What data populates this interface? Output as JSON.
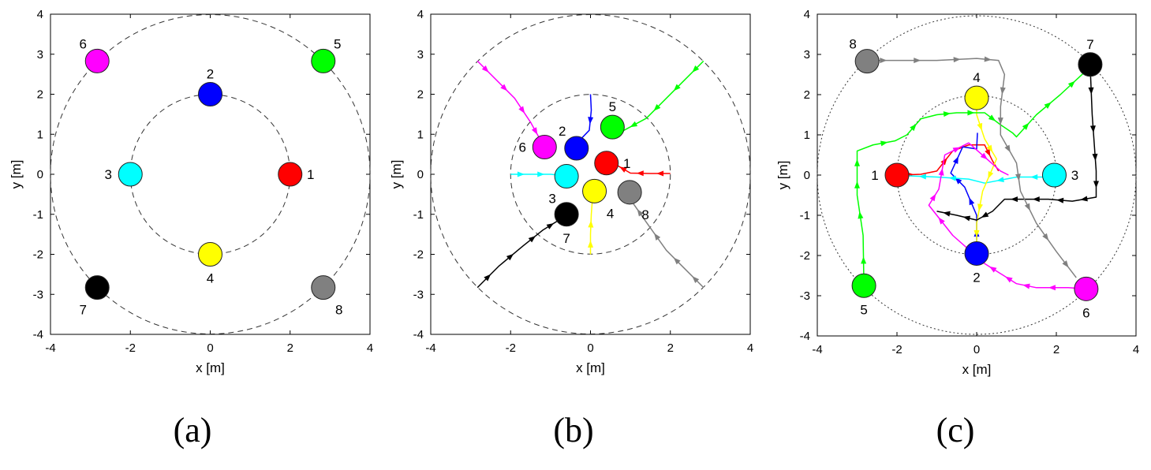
{
  "colors": {
    "1": "#ff0000",
    "2": "#0000ff",
    "3": "#00ffff",
    "4": "#ffff00",
    "5": "#00ff00",
    "6": "#ff00ff",
    "7": "#000000",
    "8": "#808080"
  },
  "chart_data": [
    {
      "type": "scatter",
      "caption": "(a)",
      "xlabel": "x [m]",
      "ylabel": "y [m]",
      "xlim": [
        -4,
        4
      ],
      "ylim": [
        -4,
        4
      ],
      "xticks": [
        -4,
        -2,
        0,
        2,
        4
      ],
      "yticks": [
        -4,
        -3,
        -2,
        -1,
        0,
        1,
        2,
        3,
        4
      ],
      "grid": false,
      "circles": [
        {
          "r": 2,
          "style": "dashed"
        },
        {
          "r": 4,
          "style": "dashed"
        }
      ],
      "robots": [
        {
          "id": "1",
          "x": 2.0,
          "y": 0.0,
          "label_pos": "right"
        },
        {
          "id": "2",
          "x": 0.0,
          "y": 2.0,
          "label_pos": "top"
        },
        {
          "id": "3",
          "x": -2.0,
          "y": 0.0,
          "label_pos": "left"
        },
        {
          "id": "4",
          "x": 0.0,
          "y": -2.0,
          "label_pos": "bottom"
        },
        {
          "id": "5",
          "x": 2.83,
          "y": 2.83,
          "label_pos": "top-right"
        },
        {
          "id": "6",
          "x": -2.83,
          "y": 2.83,
          "label_pos": "top-left"
        },
        {
          "id": "7",
          "x": -2.83,
          "y": -2.83,
          "label_pos": "bottom-left"
        },
        {
          "id": "8",
          "x": 2.83,
          "y": -2.83,
          "label_pos": "bottom-right"
        }
      ],
      "paths": []
    },
    {
      "type": "line",
      "caption": "(b)",
      "xlabel": "x [m]",
      "ylabel": "y [m]",
      "xlim": [
        -4,
        4
      ],
      "ylim": [
        -4,
        4
      ],
      "xticks": [
        -4,
        -2,
        0,
        2,
        4
      ],
      "yticks": [
        -4,
        -3,
        -2,
        -1,
        0,
        1,
        2,
        3,
        4
      ],
      "grid": false,
      "circles": [
        {
          "r": 2,
          "style": "dashed"
        },
        {
          "r": 4,
          "style": "dashed"
        }
      ],
      "robots": [
        {
          "id": "1",
          "x": 0.4,
          "y": 0.28,
          "label_pos": "right"
        },
        {
          "id": "2",
          "x": -0.35,
          "y": 0.65,
          "label_pos": "top-left"
        },
        {
          "id": "3",
          "x": -0.6,
          "y": -0.05,
          "label_pos": "bottom-left"
        },
        {
          "id": "4",
          "x": 0.1,
          "y": -0.42,
          "label_pos": "bottom-right"
        },
        {
          "id": "5",
          "x": 0.55,
          "y": 1.18,
          "label_pos": "top"
        },
        {
          "id": "6",
          "x": -1.15,
          "y": 0.68,
          "label_pos": "left"
        },
        {
          "id": "7",
          "x": -0.6,
          "y": -1.0,
          "label_pos": "bottom"
        },
        {
          "id": "8",
          "x": 0.98,
          "y": -0.45,
          "label_pos": "bottom-right"
        }
      ],
      "paths": [
        {
          "id": "1",
          "points": [
            [
              2.0,
              0.02
            ],
            [
              1.5,
              0.02
            ],
            [
              1.0,
              0.03
            ],
            [
              0.62,
              0.25
            ]
          ]
        },
        {
          "id": "2",
          "points": [
            [
              0.0,
              2.0
            ],
            [
              0.02,
              1.6
            ],
            [
              -0.03,
              1.1
            ],
            [
              -0.3,
              0.82
            ]
          ]
        },
        {
          "id": "3",
          "points": [
            [
              -2.0,
              0.0
            ],
            [
              -1.5,
              0.0
            ],
            [
              -1.0,
              0.0
            ],
            [
              -0.8,
              -0.02
            ]
          ]
        },
        {
          "id": "4",
          "points": [
            [
              0.0,
              -2.0
            ],
            [
              0.0,
              -1.5
            ],
            [
              0.02,
              -1.0
            ],
            [
              0.05,
              -0.6
            ]
          ]
        },
        {
          "id": "5",
          "points": [
            [
              2.83,
              2.83
            ],
            [
              2.4,
              2.4
            ],
            [
              1.9,
              1.9
            ],
            [
              1.4,
              1.4
            ],
            [
              0.75,
              1.05
            ]
          ]
        },
        {
          "id": "6",
          "points": [
            [
              -2.83,
              2.83
            ],
            [
              -2.4,
              2.4
            ],
            [
              -1.9,
              1.9
            ],
            [
              -1.5,
              1.3
            ],
            [
              -1.25,
              0.85
            ]
          ]
        },
        {
          "id": "7",
          "points": [
            [
              -2.83,
              -2.83
            ],
            [
              -2.3,
              -2.3
            ],
            [
              -1.7,
              -1.8
            ],
            [
              -1.2,
              -1.4
            ],
            [
              -0.8,
              -1.15
            ]
          ]
        },
        {
          "id": "8",
          "points": [
            [
              2.83,
              -2.83
            ],
            [
              2.4,
              -2.4
            ],
            [
              1.9,
              -1.9
            ],
            [
              1.4,
              -1.2
            ],
            [
              1.05,
              -0.7
            ]
          ]
        }
      ]
    },
    {
      "type": "line",
      "caption": "(c)",
      "xlabel": "x [m]",
      "ylabel": "y [m]",
      "xlim": [
        -4,
        4
      ],
      "ylim": [
        -4,
        4
      ],
      "xticks": [
        -4,
        -2,
        0,
        2,
        4
      ],
      "yticks": [
        -4,
        -3,
        -2,
        -1,
        0,
        1,
        2,
        3,
        4
      ],
      "grid": false,
      "circles": [
        {
          "r": 2,
          "style": "dotted"
        },
        {
          "r": 4,
          "style": "dotted"
        }
      ],
      "robots": [
        {
          "id": "1",
          "x": -2.0,
          "y": 0.0,
          "label_pos": "left"
        },
        {
          "id": "2",
          "x": 0.0,
          "y": -1.95,
          "label_pos": "bottom"
        },
        {
          "id": "3",
          "x": 1.95,
          "y": 0.0,
          "label_pos": "right"
        },
        {
          "id": "4",
          "x": 0.0,
          "y": 1.92,
          "label_pos": "top"
        },
        {
          "id": "5",
          "x": -2.83,
          "y": -2.75,
          "label_pos": "bottom"
        },
        {
          "id": "6",
          "x": 2.75,
          "y": -2.83,
          "label_pos": "bottom"
        },
        {
          "id": "7",
          "x": 2.85,
          "y": 2.75,
          "label_pos": "top"
        },
        {
          "id": "8",
          "x": -2.75,
          "y": 2.83,
          "label_pos": "top-left"
        }
      ],
      "paths": [
        {
          "id": "1",
          "points": [
            [
              -1.95,
              0.0
            ],
            [
              -1.4,
              0.02
            ],
            [
              -1.0,
              0.1
            ],
            [
              -0.6,
              0.6
            ],
            [
              -0.2,
              0.75
            ],
            [
              0.2,
              0.75
            ],
            [
              0.4,
              0.35
            ],
            [
              0.55,
              0.1
            ]
          ]
        },
        {
          "id": "2",
          "points": [
            [
              0.0,
              -1.9
            ],
            [
              0.0,
              -1.0
            ],
            [
              -0.3,
              -0.3
            ],
            [
              -0.65,
              0.05
            ],
            [
              -0.35,
              0.7
            ],
            [
              0.0,
              0.65
            ],
            [
              0.02,
              1.05
            ]
          ]
        },
        {
          "id": "3",
          "points": [
            [
              1.9,
              -0.05
            ],
            [
              1.0,
              -0.05
            ],
            [
              0.2,
              -0.2
            ],
            [
              -0.2,
              -0.1
            ],
            [
              -1.0,
              -0.05
            ],
            [
              -1.7,
              -0.02
            ]
          ]
        },
        {
          "id": "4",
          "points": [
            [
              0.0,
              1.9
            ],
            [
              0.0,
              1.5
            ],
            [
              0.2,
              0.9
            ],
            [
              0.5,
              0.4
            ],
            [
              0.15,
              -0.4
            ],
            [
              0.0,
              -1.2
            ],
            [
              0.0,
              -1.7
            ]
          ]
        },
        {
          "id": "5",
          "points": [
            [
              -2.83,
              -2.75
            ],
            [
              -2.85,
              -1.5
            ],
            [
              -3.0,
              -0.5
            ],
            [
              -3.0,
              0.0
            ],
            [
              -3.0,
              0.6
            ],
            [
              -2.6,
              0.75
            ],
            [
              -2.05,
              0.85
            ],
            [
              -1.75,
              1.0
            ],
            [
              -1.4,
              1.4
            ],
            [
              -1.0,
              1.5
            ],
            [
              -0.5,
              1.55
            ],
            [
              0.2,
              1.55
            ],
            [
              0.6,
              1.25
            ],
            [
              0.9,
              1.05
            ],
            [
              1.0,
              0.95
            ],
            [
              1.5,
              1.5
            ],
            [
              2.1,
              2.0
            ],
            [
              2.7,
              2.55
            ]
          ]
        },
        {
          "id": "6",
          "points": [
            [
              2.75,
              -2.83
            ],
            [
              2.3,
              -2.8
            ],
            [
              1.5,
              -2.8
            ],
            [
              1.0,
              -2.7
            ],
            [
              0.6,
              -2.45
            ],
            [
              0.2,
              -2.2
            ],
            [
              -0.6,
              -1.5
            ],
            [
              -1.2,
              -0.75
            ],
            [
              -0.95,
              -0.35
            ],
            [
              -0.8,
              0.5
            ],
            [
              -0.2,
              0.8
            ],
            [
              0.6,
              0.1
            ],
            [
              0.8,
              0.0
            ]
          ]
        },
        {
          "id": "7",
          "points": [
            [
              2.85,
              2.7
            ],
            [
              2.9,
              1.5
            ],
            [
              2.95,
              0.8
            ],
            [
              3.0,
              0.1
            ],
            [
              3.0,
              -0.55
            ],
            [
              2.4,
              -0.65
            ],
            [
              1.8,
              -0.6
            ],
            [
              1.2,
              -0.6
            ],
            [
              0.7,
              -0.6
            ],
            [
              0.4,
              -0.9
            ],
            [
              0.0,
              -1.12
            ],
            [
              -0.5,
              -1.0
            ],
            [
              -1.0,
              -0.9
            ]
          ]
        },
        {
          "id": "8",
          "points": [
            [
              -2.7,
              2.85
            ],
            [
              -2.0,
              2.85
            ],
            [
              -1.0,
              2.85
            ],
            [
              0.0,
              2.9
            ],
            [
              0.55,
              2.85
            ],
            [
              0.7,
              2.5
            ],
            [
              0.6,
              1.7
            ],
            [
              0.6,
              1.0
            ],
            [
              1.0,
              0.3
            ],
            [
              1.1,
              -0.4
            ],
            [
              1.5,
              -1.2
            ],
            [
              2.0,
              -1.9
            ],
            [
              2.5,
              -2.55
            ]
          ]
        }
      ]
    }
  ]
}
